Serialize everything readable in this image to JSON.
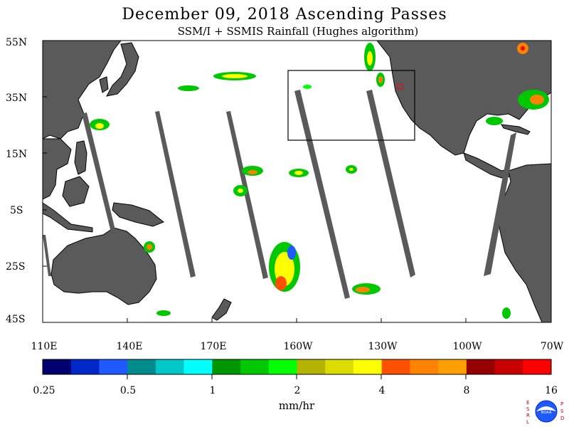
{
  "title": "December 09, 2018  Ascending Passes",
  "subtitle": "SSM/I + SSMIS Rainfall (Hughes algorithm)",
  "lat_labels": [
    "55N",
    "35N",
    "15N",
    "5S",
    "25S",
    "45S"
  ],
  "lon_labels": [
    "110E",
    "140E",
    "170E",
    "160W",
    "130W",
    "100W",
    "70W"
  ],
  "colorbar": {
    "colors": [
      "#00006e",
      "#0028c8",
      "#1e5aff",
      "#008c8c",
      "#00c8c8",
      "#00ffff",
      "#009600",
      "#00c800",
      "#00ff00",
      "#b4b400",
      "#dcdc00",
      "#ffff00",
      "#ff5000",
      "#ff8200",
      "#ffa000",
      "#960000",
      "#c80000",
      "#ff0000"
    ],
    "tick_labels": [
      "0.25",
      "0.5",
      "1",
      "2",
      "4",
      "8",
      "16"
    ],
    "units": "mm/hr"
  },
  "logo": {
    "left_text": "ESRL",
    "right_text": "PSD",
    "center_text": "NOAA"
  },
  "colors": {
    "land": "#5a5a5a",
    "ocean": "#ffffff",
    "swath_gap": "#5a5a5a"
  }
}
